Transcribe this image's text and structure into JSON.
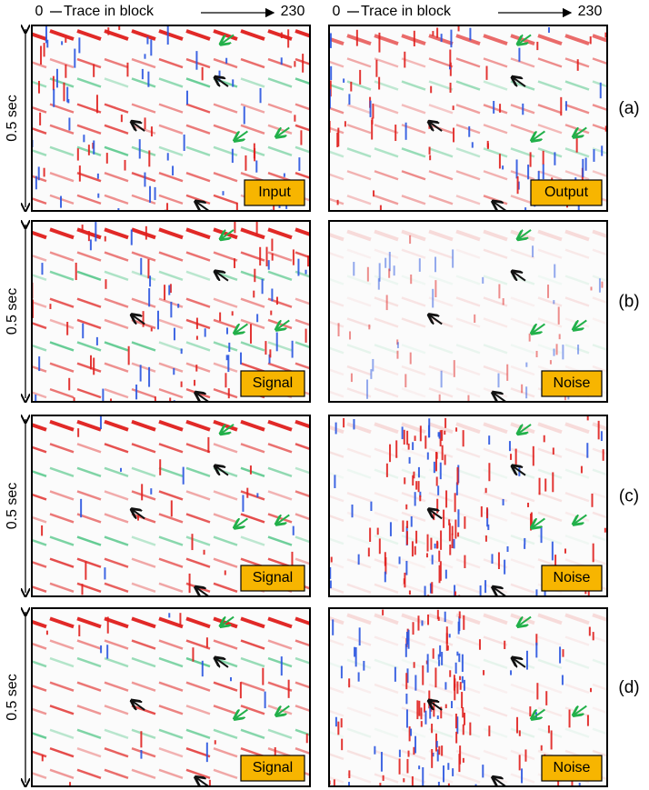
{
  "header": {
    "columns": [
      {
        "start": "0",
        "label": "Trace in block",
        "end": "230"
      },
      {
        "start": "0",
        "label": "Trace in block",
        "end": "230"
      }
    ]
  },
  "rows": [
    {
      "label": "(a)",
      "y_axis": "0.5 sec",
      "panels": [
        "Input",
        "Output"
      ]
    },
    {
      "label": "(b)",
      "y_axis": "0.5 sec",
      "panels": [
        "Signal",
        "Noise"
      ]
    },
    {
      "label": "(c)",
      "y_axis": "0.5 sec",
      "panels": [
        "Signal",
        "Noise"
      ]
    },
    {
      "label": "(d)",
      "y_axis": "0.5 sec",
      "panels": [
        "Signal",
        "Noise"
      ]
    }
  ]
}
